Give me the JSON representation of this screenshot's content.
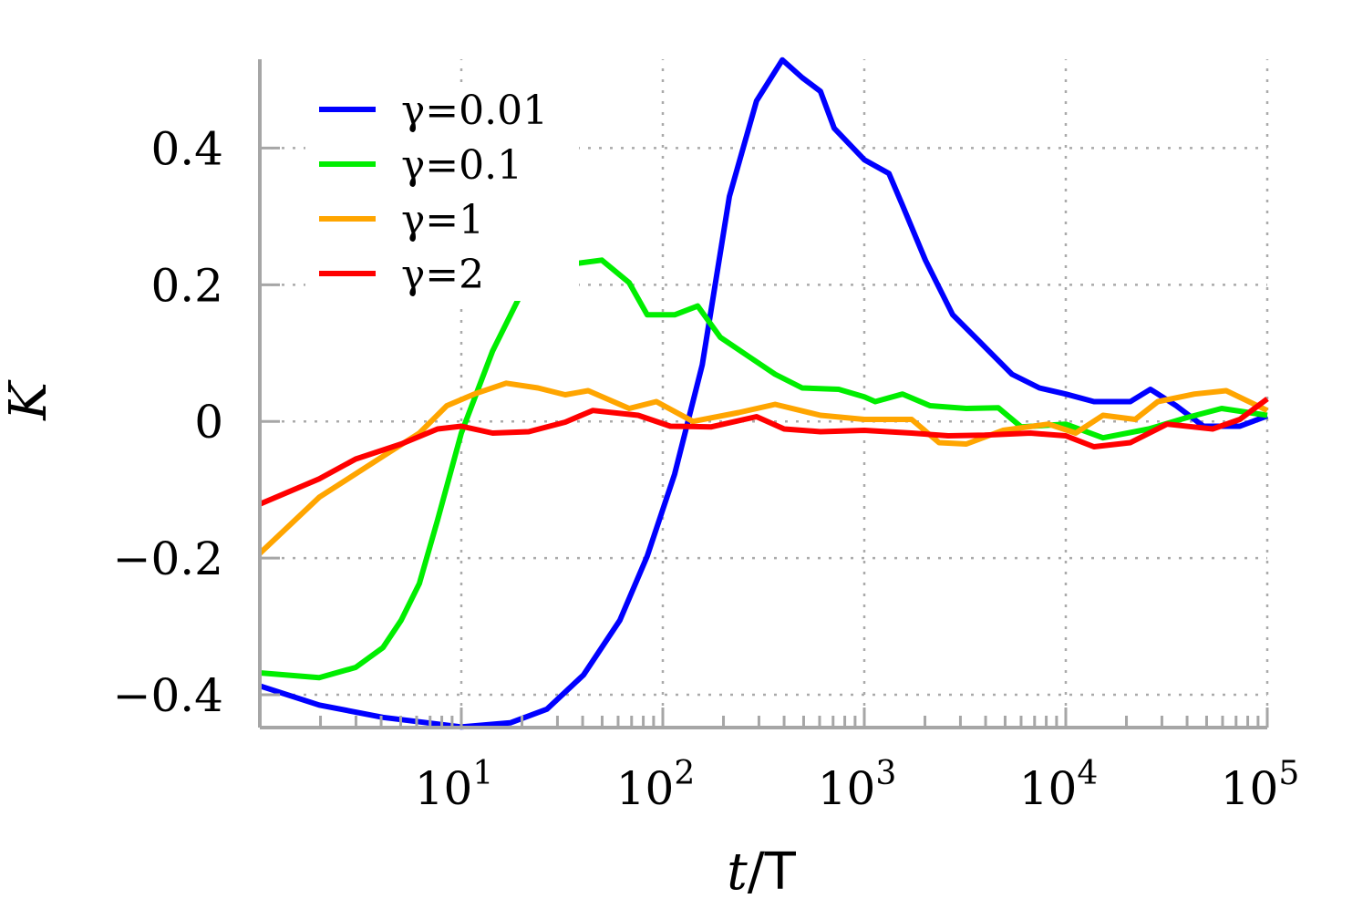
{
  "chart_data": {
    "type": "line",
    "xlabel_italic": "t",
    "xlabel_rest": "/T",
    "ylabel": "K",
    "xscale": "log",
    "xlim": [
      1,
      100000
    ],
    "ylim": [
      -0.448,
      0.53
    ],
    "grid": true,
    "legend_position": "top-left",
    "xticks": [
      {
        "base": "10",
        "exp": "1",
        "value": 10
      },
      {
        "base": "10",
        "exp": "2",
        "value": 100
      },
      {
        "base": "10",
        "exp": "3",
        "value": 1000
      },
      {
        "base": "10",
        "exp": "4",
        "value": 10000
      },
      {
        "base": "10",
        "exp": "5",
        "value": 100000
      }
    ],
    "yticks": [
      {
        "label": "0.4",
        "value": 0.4
      },
      {
        "label": "0.2",
        "value": 0.2
      },
      {
        "label": "0",
        "value": 0
      },
      {
        "label": "−0.2",
        "value": -0.2
      },
      {
        "label": "−0.4",
        "value": -0.4
      }
    ],
    "axis_color": "#a6a6a6",
    "series": [
      {
        "name": "γ=0.01",
        "color": "#0000ff",
        "x": [
          1,
          1.97,
          4.08,
          10,
          17.5,
          26.6,
          40.4,
          61.2,
          83.7,
          114.5,
          157,
          214,
          292,
          392,
          492,
          606,
          709,
          1000,
          1325,
          1549,
          2010,
          2746,
          3756,
          5410,
          7400,
          10000,
          13800,
          20900,
          26300,
          35300,
          48200,
          73100,
          100000
        ],
        "y": [
          -0.387,
          -0.415,
          -0.433,
          -0.447,
          -0.441,
          -0.421,
          -0.371,
          -0.291,
          -0.197,
          -0.077,
          0.083,
          0.329,
          0.469,
          0.529,
          0.503,
          0.483,
          0.429,
          0.383,
          0.363,
          0.316,
          0.236,
          0.156,
          0.116,
          0.069,
          0.049,
          0.04,
          0.029,
          0.029,
          0.047,
          0.023,
          -0.007,
          -0.007,
          0.008
        ]
      },
      {
        "name": "γ=0.1",
        "color": "#00ee00",
        "x": [
          1,
          1.97,
          2.99,
          4.08,
          5.03,
          6.19,
          7.63,
          10,
          14.3,
          19.5,
          24,
          32.8,
          49.8,
          68.1,
          83.7,
          114.5,
          149,
          193,
          264,
          361,
          492,
          746,
          1000,
          1133,
          1549,
          2120,
          3210,
          4620,
          6000,
          10000,
          15300,
          25800,
          39200,
          59400,
          100000
        ],
        "y": [
          -0.368,
          -0.375,
          -0.36,
          -0.331,
          -0.291,
          -0.237,
          -0.144,
          -0.017,
          0.103,
          0.183,
          0.209,
          0.229,
          0.236,
          0.203,
          0.156,
          0.156,
          0.169,
          0.123,
          0.096,
          0.069,
          0.049,
          0.047,
          0.036,
          0.029,
          0.04,
          0.023,
          0.019,
          0.02,
          -0.008,
          -0.004,
          -0.024,
          -0.011,
          0.005,
          0.019,
          0.009
        ]
      },
      {
        "name": "γ=1",
        "color": "#ffa500",
        "x": [
          1,
          1.97,
          4.08,
          6.19,
          8.47,
          11.6,
          16.7,
          24,
          32.8,
          42.6,
          68.1,
          92.9,
          141,
          238,
          361,
          606,
          1000,
          1718,
          2350,
          3210,
          4880,
          8200,
          11200,
          15300,
          22100,
          28600,
          43500,
          62500,
          100000
        ],
        "y": [
          -0.193,
          -0.111,
          -0.051,
          -0.017,
          0.023,
          0.04,
          0.056,
          0.049,
          0.039,
          0.045,
          0.019,
          0.029,
          0,
          0.013,
          0.025,
          0.009,
          0.003,
          0.003,
          -0.031,
          -0.033,
          -0.013,
          -0.004,
          -0.017,
          0.009,
          0.003,
          0.029,
          0.04,
          0.045,
          0.016
        ]
      },
      {
        "name": "γ=2",
        "color": "#ff0000",
        "x": [
          1,
          1.97,
          2.99,
          5.03,
          7.63,
          10,
          14.3,
          21.6,
          32.8,
          44.9,
          75.5,
          109,
          174,
          292,
          400,
          606,
          1000,
          1718,
          2610,
          3950,
          6670,
          10000,
          13800,
          20900,
          31800,
          53600,
          73100,
          100000
        ],
        "y": [
          -0.121,
          -0.084,
          -0.055,
          -0.033,
          -0.011,
          -0.007,
          -0.017,
          -0.015,
          -0.001,
          0.016,
          0.009,
          -0.007,
          -0.008,
          0.007,
          -0.011,
          -0.015,
          -0.013,
          -0.017,
          -0.021,
          -0.02,
          -0.017,
          -0.021,
          -0.037,
          -0.031,
          -0.004,
          -0.011,
          0.003,
          0.033
        ]
      }
    ]
  }
}
